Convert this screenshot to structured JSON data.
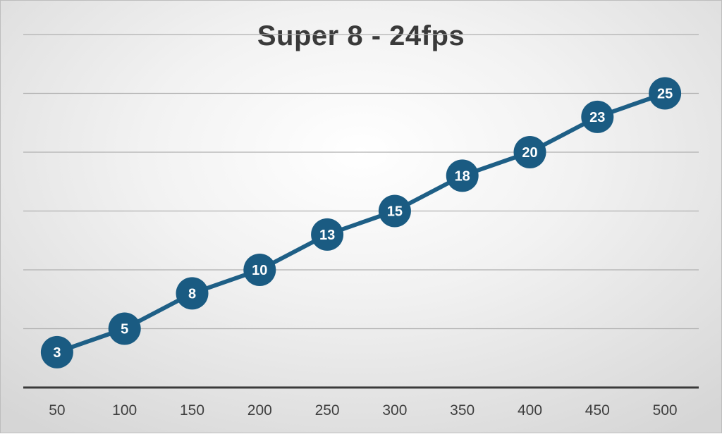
{
  "chart_data": {
    "type": "line",
    "title": "Super 8 - 24fps",
    "xlabel": "",
    "ylabel": "",
    "categories": [
      "50",
      "100",
      "150",
      "200",
      "250",
      "300",
      "350",
      "400",
      "450",
      "500"
    ],
    "series": [
      {
        "values": [
          3,
          5,
          8,
          10,
          13,
          15,
          18,
          20,
          23,
          25
        ]
      }
    ],
    "ylim": [
      0,
      30
    ],
    "grid": true,
    "y_tick_labels_shown": false,
    "data_labels": true,
    "legend": "none",
    "colors": {
      "line": "#1e5f86",
      "marker": "#1a5b82",
      "gridline": "#b0b0b0",
      "axis": "#3a3a3a",
      "title": "#3a3a3a"
    }
  }
}
